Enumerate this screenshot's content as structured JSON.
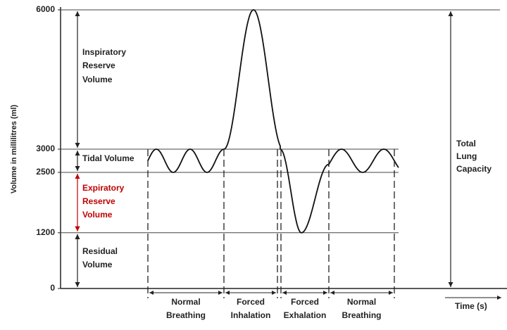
{
  "y_axis": {
    "label": "Volume in millilitres (ml)",
    "ticks": [
      0,
      1200,
      2500,
      3000,
      6000
    ]
  },
  "x_axis": {
    "label": "Time (s)"
  },
  "volumes": [
    {
      "label": [
        "Inspiratory",
        "Reserve",
        "Volume"
      ]
    },
    {
      "label": [
        "Tidal Volume"
      ]
    },
    {
      "label": [
        "Expiratory",
        "Reserve",
        "Volume"
      ]
    },
    {
      "label": [
        "Residual",
        "Volume"
      ]
    }
  ],
  "total": [
    "Total",
    "Lung",
    "Capacity"
  ],
  "phases": [
    [
      "Normal",
      "Breathing"
    ],
    [
      "Forced",
      "Inhalation"
    ],
    [
      "Forced",
      "Exhalation"
    ],
    [
      "Normal",
      "Breathing"
    ]
  ]
}
